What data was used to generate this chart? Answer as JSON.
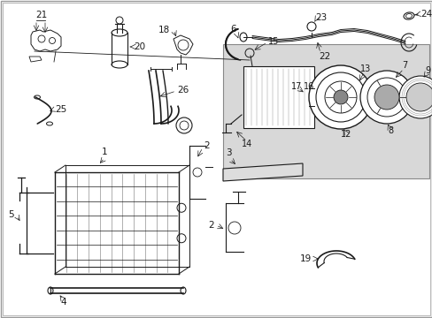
{
  "bg_color": "#ffffff",
  "line_color": "#1a1a1a",
  "fig_width": 4.89,
  "fig_height": 3.6,
  "dpi": 100,
  "box6_color": "#d8d8d8",
  "box6_edge": "#888888"
}
